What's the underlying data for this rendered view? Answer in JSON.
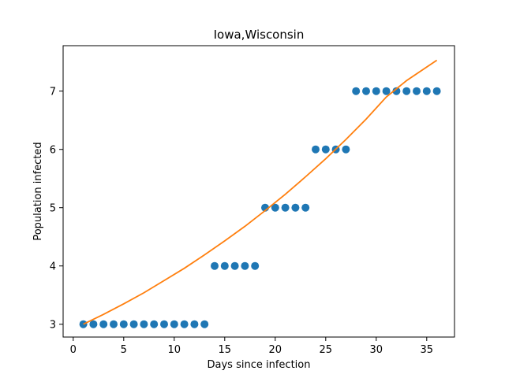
{
  "chart_data": {
    "type": "scatter",
    "title": "Iowa,Wisconsin",
    "xlabel": "Days since infection",
    "ylabel": "Population infected",
    "xlim": [
      -1,
      37.75
    ],
    "ylim": [
      2.78,
      7.78
    ],
    "xticks": [
      0,
      5,
      10,
      15,
      20,
      25,
      30,
      35
    ],
    "yticks": [
      3,
      4,
      5,
      6,
      7
    ],
    "grid": false,
    "series": [
      {
        "type": "scatter",
        "color": "#1f77b4",
        "points": [
          [
            1,
            3
          ],
          [
            2,
            3
          ],
          [
            3,
            3
          ],
          [
            4,
            3
          ],
          [
            5,
            3
          ],
          [
            6,
            3
          ],
          [
            7,
            3
          ],
          [
            8,
            3
          ],
          [
            9,
            3
          ],
          [
            10,
            3
          ],
          [
            11,
            3
          ],
          [
            12,
            3
          ],
          [
            13,
            3
          ],
          [
            14,
            4
          ],
          [
            15,
            4
          ],
          [
            16,
            4
          ],
          [
            17,
            4
          ],
          [
            18,
            4
          ],
          [
            19,
            5
          ],
          [
            20,
            5
          ],
          [
            21,
            5
          ],
          [
            22,
            5
          ],
          [
            23,
            5
          ],
          [
            24,
            6
          ],
          [
            25,
            6
          ],
          [
            26,
            6
          ],
          [
            27,
            6
          ],
          [
            28,
            7
          ],
          [
            29,
            7
          ],
          [
            30,
            7
          ],
          [
            31,
            7
          ],
          [
            32,
            7
          ],
          [
            33,
            7
          ],
          [
            34,
            7
          ],
          [
            35,
            7
          ],
          [
            36,
            7
          ]
        ]
      },
      {
        "type": "line",
        "color": "#ff7f0e",
        "points": [
          [
            1,
            3.0
          ],
          [
            3,
            3.17
          ],
          [
            5,
            3.35
          ],
          [
            7,
            3.54
          ],
          [
            9,
            3.75
          ],
          [
            11,
            3.96
          ],
          [
            13,
            4.19
          ],
          [
            15,
            4.43
          ],
          [
            17,
            4.68
          ],
          [
            19,
            4.95
          ],
          [
            21,
            5.23
          ],
          [
            23,
            5.53
          ],
          [
            25,
            5.84
          ],
          [
            27,
            6.17
          ],
          [
            29,
            6.52
          ],
          [
            31,
            6.9
          ],
          [
            33,
            7.18
          ],
          [
            36,
            7.53
          ]
        ]
      }
    ]
  }
}
